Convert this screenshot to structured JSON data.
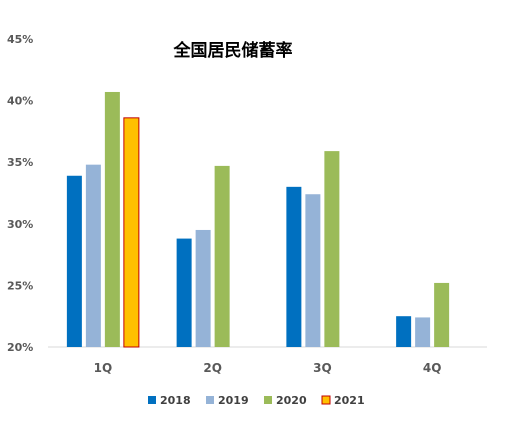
{
  "chart_data": {
    "type": "bar",
    "title": "全国居民储蓄率",
    "xlabel": "",
    "ylabel": "",
    "categories": [
      "1Q",
      "2Q",
      "3Q",
      "4Q"
    ],
    "ylim": [
      0.2,
      0.45
    ],
    "yticks": [
      0.2,
      0.25,
      0.3,
      0.35,
      0.4,
      0.45
    ],
    "ytick_labels": [
      "20%",
      "25%",
      "30%",
      "35%",
      "40%",
      "45%"
    ],
    "grid": false,
    "legend_position": "bottom",
    "series": [
      {
        "name": "2018",
        "color": "#0070C0",
        "values": [
          0.339,
          0.288,
          0.33,
          0.225
        ]
      },
      {
        "name": "2019",
        "color": "#95B3D7",
        "values": [
          0.348,
          0.295,
          0.324,
          0.224
        ]
      },
      {
        "name": "2020",
        "color": "#9BBB59",
        "values": [
          0.407,
          0.347,
          0.359,
          0.252
        ]
      },
      {
        "name": "2021",
        "color": "#FFC000",
        "border": "#C00000",
        "values": [
          0.386,
          null,
          null,
          null
        ]
      }
    ]
  }
}
